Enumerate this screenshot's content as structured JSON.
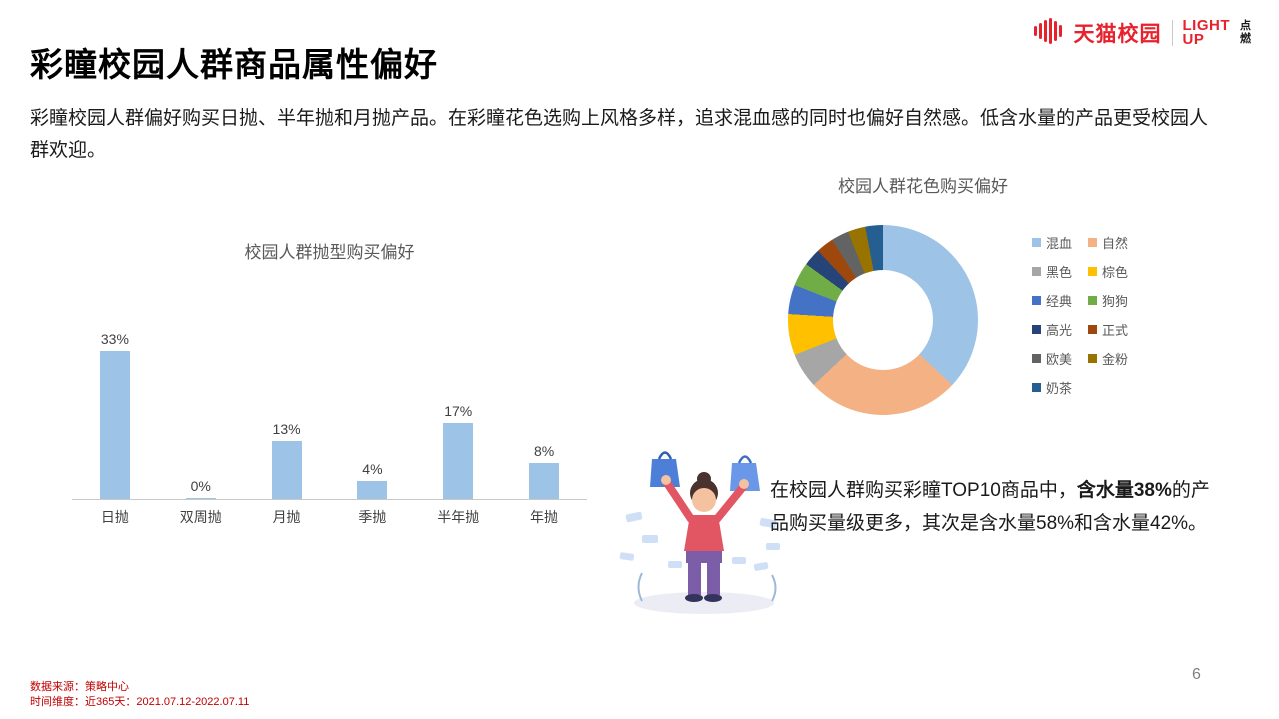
{
  "header": {
    "brand": "天猫校园",
    "light_up_line1": "LIGHT",
    "light_up_line2": "UP",
    "dianran_top": "点",
    "dianran_bottom": "燃"
  },
  "title": "彩瞳校园人群商品属性偏好",
  "intro": "彩瞳校园人群偏好购买日抛、半年抛和月抛产品。在彩瞳花色选购上风格多样，追求混血感的同时也偏好自然感。低含水量的产品更受校园人群欢迎。",
  "chart_data": [
    {
      "type": "bar",
      "title": "校园人群抛型购买偏好",
      "categories": [
        "日抛",
        "双周抛",
        "月抛",
        "季抛",
        "半年抛",
        "年抛"
      ],
      "values": [
        33,
        0,
        13,
        4,
        17,
        8
      ],
      "unit": "%",
      "bar_color": "#9DC3E6",
      "ylim": [
        0,
        35
      ],
      "grid": false,
      "data_labels": true
    },
    {
      "type": "pie",
      "subtype": "donut",
      "title": "校园人群花色购买偏好",
      "legend_position": "right",
      "series": [
        {
          "name": "混血",
          "value": 37,
          "color": "#9DC3E6"
        },
        {
          "name": "自然",
          "value": 26,
          "color": "#F4B183"
        },
        {
          "name": "黑色",
          "value": 6,
          "color": "#A6A6A6"
        },
        {
          "name": "棕色",
          "value": 7,
          "color": "#FFC000"
        },
        {
          "name": "经典",
          "value": 5,
          "color": "#4472C4"
        },
        {
          "name": "狗狗",
          "value": 4,
          "color": "#70AD47"
        },
        {
          "name": "高光",
          "value": 3,
          "color": "#264478"
        },
        {
          "name": "正式",
          "value": 3,
          "color": "#9E480E"
        },
        {
          "name": "欧美",
          "value": 3,
          "color": "#636363"
        },
        {
          "name": "金粉",
          "value": 3,
          "color": "#997300"
        },
        {
          "name": "奶茶",
          "value": 3,
          "color": "#255E91"
        }
      ]
    }
  ],
  "insight": {
    "pre": "在校园人群购买彩瞳TOP10商品中，",
    "bold": "含水量38%",
    "post": "的产品购买量级更多，其次是含水量58%和含水量42%。"
  },
  "footer": {
    "source": "数据来源：策略中心",
    "time": "时间维度：近365天：2021.07.12-2022.07.11",
    "page": "6"
  }
}
